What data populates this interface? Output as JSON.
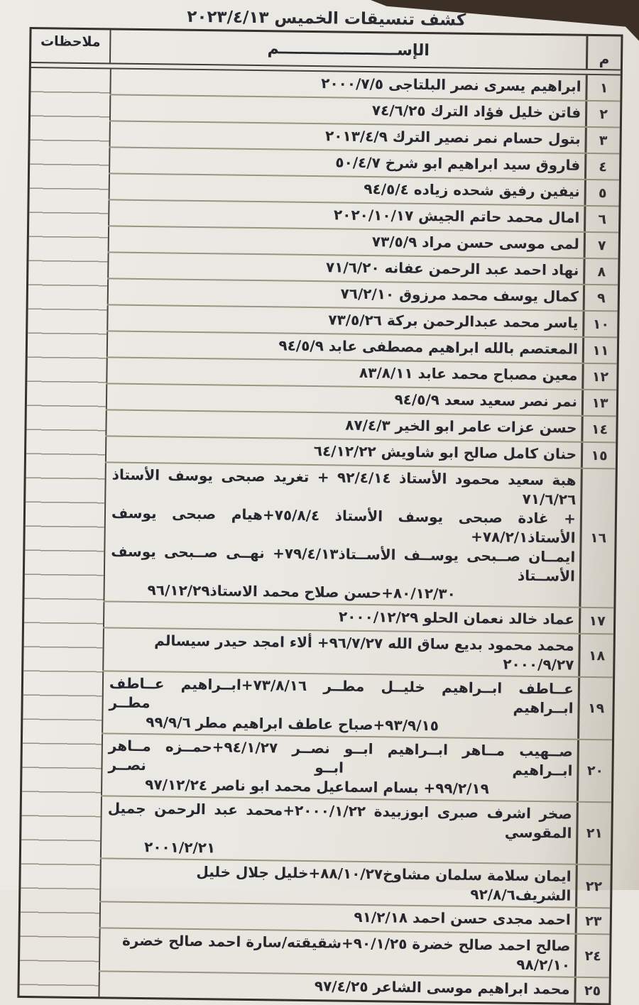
{
  "page": {
    "title": "كشف تنسيقات الخميس ٢٠٢٣/٤/١٣"
  },
  "colors": {
    "paper": "#e9e6df",
    "desk": "#3c3026",
    "ink": "#26262e",
    "table_border": "#36322b",
    "row_line": "#9a9480"
  },
  "table": {
    "headers": {
      "number": "م",
      "name": "الإســــــــــــــــــــــم",
      "notes": "ملاحظات"
    },
    "rows": [
      {
        "no": "١",
        "lines": [
          "ابراهيم يسرى نصر البلتاجى ٢٠٠٠/٧/٥"
        ]
      },
      {
        "no": "٢",
        "lines": [
          "فاتن خليل فؤاد الترك ٧٤/٦/٢٥"
        ]
      },
      {
        "no": "٣",
        "lines": [
          "بتول حسام نمر نصير الترك ٢٠١٣/٤/٩"
        ]
      },
      {
        "no": "٤",
        "lines": [
          "فاروق سيد ابراهيم ابو شرخ ٥٠/٤/٧"
        ]
      },
      {
        "no": "٥",
        "lines": [
          "نيفين رفيق شحده زياده ٩٤/٥/٤"
        ]
      },
      {
        "no": "٦",
        "lines": [
          "امال محمد حاتم الجيش ٢٠٢٠/١٠/١٧"
        ]
      },
      {
        "no": "٧",
        "lines": [
          "لمى موسى حسن مراد ٧٣/٥/٩"
        ]
      },
      {
        "no": "٨",
        "lines": [
          "نهاد احمد عبد الرحمن عفانه ٧١/٦/٢٠"
        ]
      },
      {
        "no": "٩",
        "lines": [
          "كمال يوسف محمد مرزوق ٧٦/٢/١٠"
        ]
      },
      {
        "no": "١٠",
        "lines": [
          "ياسر محمد عبدالرحمن بركة ٧٣/٥/٢٦"
        ]
      },
      {
        "no": "١١",
        "lines": [
          "المعتصم بالله ابراهيم مصطفى عابد ٩٤/٥/٩"
        ]
      },
      {
        "no": "١٢",
        "lines": [
          "معين مصباح محمد عابد ٨٣/٨/١١"
        ]
      },
      {
        "no": "١٣",
        "lines": [
          "نمر نصر سعيد سعد ٩٤/٥/٩"
        ]
      },
      {
        "no": "١٤",
        "lines": [
          "حسن عزات عامر ابو الخير ٨٧/٤/٣"
        ]
      },
      {
        "no": "١٥",
        "lines": [
          "حنان كامل صالح ابو شاويش ٦٤/١٢/٢٢"
        ]
      },
      {
        "no": "١٦",
        "lines": [
          "هبة سعيد محمود الأستاذ ٩٢/٤/١٤ + تغريد صبحى يوسف الأستاذ ٧١/٦/٢٦",
          "+ غادة صبحى يوسف الأستاذ ٧٥/٨/٤+هيام صبحى يوسف الأستاذ٧٨/٢/١+",
          "ايمــان صــبحى يوســف الأســتاذ٧٩/٤/١٣+ نهــى صــبحى يوسف الأســتاذ",
          "٨٠/١٢/٣٠+حسن صلاح محمد الاستاذ٩٦/١٢/٢٩"
        ]
      },
      {
        "no": "١٧",
        "lines": [
          "عماد خالد نعمان الحلو ٢٠٠٠/١٢/٢٩"
        ]
      },
      {
        "no": "١٨",
        "lines": [
          "محمد محمود بديع ساق الله ٩٦/٧/٢٧+ ألاء امجد حيدر سيسالم ٢٠٠٠/٩/٢٧"
        ]
      },
      {
        "no": "١٩",
        "lines": [
          "عــاطف ابــراهيم خليــل مطــر ٧٣/٨/١٦+ابــراهيم عــاطف ابــراهيم مطــر",
          "٩٣/٩/١٥+صباح عاطف ابراهيم مطر ٩٩/٩/٦"
        ]
      },
      {
        "no": "٢٠",
        "lines": [
          "صــهيب مــاهر ابــراهيم ابــو نصــر ٩٤/١/٢٧+حمــزه مــاهر ابــراهيم ابــو نصــر",
          "٩٩/٢/١٩+ بسام اسماعيل محمد ابو ناصر ٩٧/١٢/٢٤"
        ]
      },
      {
        "no": "٢١",
        "lines": [
          "صخر اشرف صبرى ابوزبيدة ٢٠٠٠/١/٢٢+محمد عبد الرحمن جميل المقوسي",
          "٢٠٠١/٢/٢١"
        ]
      },
      {
        "no": "٢٢",
        "lines": [
          "ايمان سلامة سلمان مشاوخ٨٨/١٠/٢٧+خليل جلال خليل الشريف٩٢/٨/٦"
        ]
      },
      {
        "no": "٢٣",
        "lines": [
          "احمد مجدى حسن احمد ٩١/٢/١٨"
        ]
      },
      {
        "no": "٢٤",
        "lines": [
          "صالح احمد صالح خضرة ٩٠/١/٢٥+شقيقته/سارة احمد صالح خضرة ٩٨/٢/١٠"
        ]
      },
      {
        "no": "٢٥",
        "lines": [
          "محمد ابراهيم موسى الشاعر ٩٧/٤/٢٥"
        ]
      }
    ]
  }
}
